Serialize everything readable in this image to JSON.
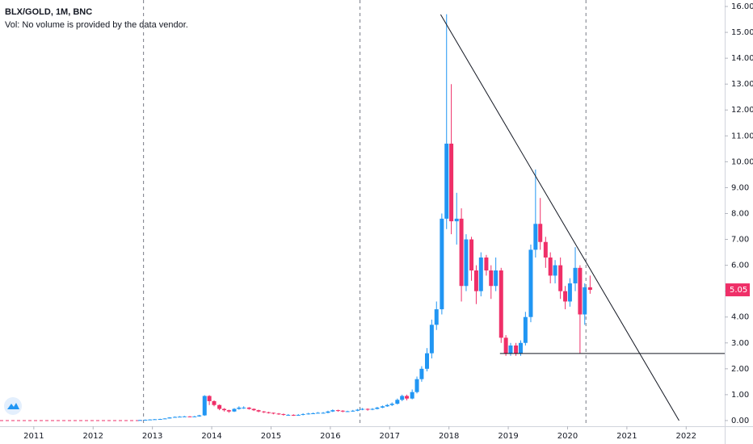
{
  "chart_data": {
    "type": "candlestick",
    "title": "BLX/GOLD, 1M, BNC",
    "subtitle": "Vol: No volume is provided by the data vendor.",
    "up_color": "#2196f3",
    "down_color": "#ef2f68",
    "xlim": [
      2010.43,
      2022.65
    ],
    "xticks": [
      2011,
      2012,
      2013,
      2014,
      2015,
      2016,
      2017,
      2018,
      2019,
      2020,
      2021,
      2022
    ],
    "ylim": [
      -0.22,
      16.25
    ],
    "yticks": [
      {
        "value": 0,
        "label": "0.00"
      },
      {
        "value": 1,
        "label": "1.00"
      },
      {
        "value": 2,
        "label": "2.00"
      },
      {
        "value": 3,
        "label": "3.00"
      },
      {
        "value": 4,
        "label": "4.00"
      },
      {
        "value": 5,
        "label": "5.00"
      },
      {
        "value": 6,
        "label": "6.00"
      },
      {
        "value": 7,
        "label": "7.00"
      },
      {
        "value": 8,
        "label": "8.00"
      },
      {
        "value": 9,
        "label": "9.00"
      },
      {
        "value": 10,
        "label": "10.00"
      },
      {
        "value": 11,
        "label": "11.00"
      },
      {
        "value": 12,
        "label": "12.00"
      },
      {
        "value": 13,
        "label": "13.00"
      },
      {
        "value": 14,
        "label": "14.00"
      },
      {
        "value": 15,
        "label": "15.00"
      },
      {
        "value": 16,
        "label": "16.00"
      }
    ],
    "grid": false,
    "x": [
      2012.79,
      2012.88,
      2012.96,
      2013.04,
      2013.13,
      2013.21,
      2013.29,
      2013.38,
      2013.46,
      2013.54,
      2013.63,
      2013.71,
      2013.79,
      2013.88,
      2013.96,
      2014.04,
      2014.13,
      2014.21,
      2014.29,
      2014.38,
      2014.46,
      2014.54,
      2014.63,
      2014.71,
      2014.79,
      2014.88,
      2014.96,
      2015.04,
      2015.13,
      2015.21,
      2015.29,
      2015.38,
      2015.46,
      2015.54,
      2015.63,
      2015.71,
      2015.79,
      2015.88,
      2015.96,
      2016.04,
      2016.13,
      2016.21,
      2016.29,
      2016.38,
      2016.46,
      2016.54,
      2016.63,
      2016.71,
      2016.79,
      2016.88,
      2016.96,
      2017.04,
      2017.13,
      2017.21,
      2017.29,
      2017.38,
      2017.46,
      2017.54,
      2017.63,
      2017.71,
      2017.79,
      2017.88,
      2017.96,
      2018.04,
      2018.13,
      2018.21,
      2018.29,
      2018.38,
      2018.46,
      2018.54,
      2018.63,
      2018.71,
      2018.79,
      2018.88,
      2018.96,
      2019.04,
      2019.13,
      2019.21,
      2019.29,
      2019.38,
      2019.46,
      2019.54,
      2019.63,
      2019.71,
      2019.79,
      2019.88,
      2019.96,
      2020.04,
      2020.13,
      2020.21,
      2020.29,
      2020.38
    ],
    "open": [
      0.02,
      0.02,
      0.03,
      0.04,
      0.05,
      0.06,
      0.08,
      0.12,
      0.14,
      0.15,
      0.16,
      0.15,
      0.16,
      0.2,
      0.95,
      0.75,
      0.6,
      0.45,
      0.4,
      0.35,
      0.45,
      0.5,
      0.5,
      0.45,
      0.4,
      0.35,
      0.32,
      0.3,
      0.27,
      0.25,
      0.22,
      0.22,
      0.2,
      0.22,
      0.25,
      0.27,
      0.28,
      0.3,
      0.3,
      0.35,
      0.4,
      0.38,
      0.35,
      0.36,
      0.38,
      0.42,
      0.45,
      0.42,
      0.45,
      0.5,
      0.55,
      0.6,
      0.65,
      0.8,
      0.95,
      0.85,
      1.1,
      1.6,
      2.0,
      2.6,
      3.7,
      4.3,
      7.8,
      10.7,
      7.7,
      7.8,
      5.2,
      7.0,
      5.8,
      5.0,
      6.3,
      5.8,
      5.2,
      5.8,
      3.2,
      2.6,
      2.9,
      2.6,
      3.0,
      4.0,
      6.6,
      7.6,
      6.9,
      6.3,
      5.6,
      6.0,
      5.0,
      4.6,
      5.3,
      5.9,
      4.1,
      5.15
    ],
    "high": [
      0.03,
      0.04,
      0.05,
      0.06,
      0.07,
      0.09,
      0.13,
      0.16,
      0.17,
      0.18,
      0.17,
      0.18,
      0.22,
      0.98,
      0.98,
      0.78,
      0.62,
      0.48,
      0.42,
      0.48,
      0.55,
      0.55,
      0.52,
      0.47,
      0.42,
      0.37,
      0.34,
      0.31,
      0.29,
      0.27,
      0.25,
      0.24,
      0.25,
      0.28,
      0.3,
      0.31,
      0.33,
      0.33,
      0.38,
      0.43,
      0.42,
      0.4,
      0.38,
      0.41,
      0.45,
      0.48,
      0.47,
      0.48,
      0.53,
      0.58,
      0.64,
      0.7,
      0.85,
      1.0,
      1.0,
      1.2,
      1.7,
      2.1,
      2.8,
      3.9,
      4.6,
      8.0,
      15.7,
      13.0,
      8.8,
      8.2,
      7.2,
      7.1,
      6.0,
      6.5,
      6.4,
      6.0,
      6.3,
      5.9,
      3.3,
      3.0,
      3.0,
      3.1,
      4.2,
      6.8,
      9.7,
      8.6,
      7.1,
      6.5,
      6.2,
      6.3,
      5.2,
      5.5,
      6.7,
      6.0,
      5.3,
      5.6
    ],
    "low": [
      0.01,
      0.02,
      0.03,
      0.04,
      0.05,
      0.06,
      0.08,
      0.11,
      0.13,
      0.14,
      0.13,
      0.14,
      0.15,
      0.18,
      0.6,
      0.55,
      0.4,
      0.35,
      0.3,
      0.33,
      0.42,
      0.45,
      0.42,
      0.37,
      0.32,
      0.29,
      0.27,
      0.24,
      0.22,
      0.19,
      0.19,
      0.18,
      0.19,
      0.2,
      0.23,
      0.25,
      0.27,
      0.27,
      0.28,
      0.33,
      0.34,
      0.32,
      0.33,
      0.34,
      0.36,
      0.4,
      0.38,
      0.4,
      0.43,
      0.48,
      0.53,
      0.56,
      0.62,
      0.75,
      0.78,
      0.82,
      1.05,
      1.5,
      1.9,
      2.4,
      3.5,
      4.1,
      7.4,
      7.2,
      6.8,
      4.6,
      5.0,
      5.4,
      4.5,
      4.8,
      5.6,
      4.7,
      5.0,
      3.0,
      2.5,
      2.5,
      2.5,
      2.5,
      2.9,
      3.8,
      6.3,
      6.6,
      5.9,
      5.3,
      5.3,
      4.7,
      4.3,
      4.4,
      5.0,
      2.6,
      3.7,
      4.9
    ],
    "close": [
      0.02,
      0.03,
      0.04,
      0.05,
      0.06,
      0.08,
      0.12,
      0.14,
      0.15,
      0.16,
      0.15,
      0.16,
      0.2,
      0.95,
      0.75,
      0.6,
      0.45,
      0.4,
      0.35,
      0.45,
      0.5,
      0.5,
      0.45,
      0.4,
      0.35,
      0.32,
      0.3,
      0.27,
      0.25,
      0.22,
      0.22,
      0.2,
      0.22,
      0.25,
      0.27,
      0.28,
      0.3,
      0.3,
      0.35,
      0.4,
      0.38,
      0.35,
      0.36,
      0.38,
      0.42,
      0.45,
      0.42,
      0.45,
      0.5,
      0.55,
      0.6,
      0.65,
      0.8,
      0.95,
      0.85,
      1.1,
      1.6,
      2.0,
      2.6,
      3.7,
      4.3,
      7.8,
      10.7,
      7.7,
      7.8,
      5.2,
      7.0,
      5.8,
      5.0,
      6.3,
      5.8,
      5.2,
      5.8,
      3.2,
      2.6,
      2.9,
      2.6,
      3.0,
      4.0,
      6.6,
      7.6,
      6.9,
      6.3,
      5.6,
      6.0,
      5.0,
      4.6,
      5.3,
      5.9,
      4.1,
      5.15,
      5.05
    ],
    "vlines": [
      2012.85,
      2016.5,
      2020.31
    ],
    "trendline": {
      "x": [
        2017.86,
        2021.88
      ],
      "y": [
        15.69,
        0
      ]
    },
    "support": {
      "x": [
        2018.86,
        2022.65
      ],
      "y": [
        2.59,
        2.59
      ]
    }
  }
}
